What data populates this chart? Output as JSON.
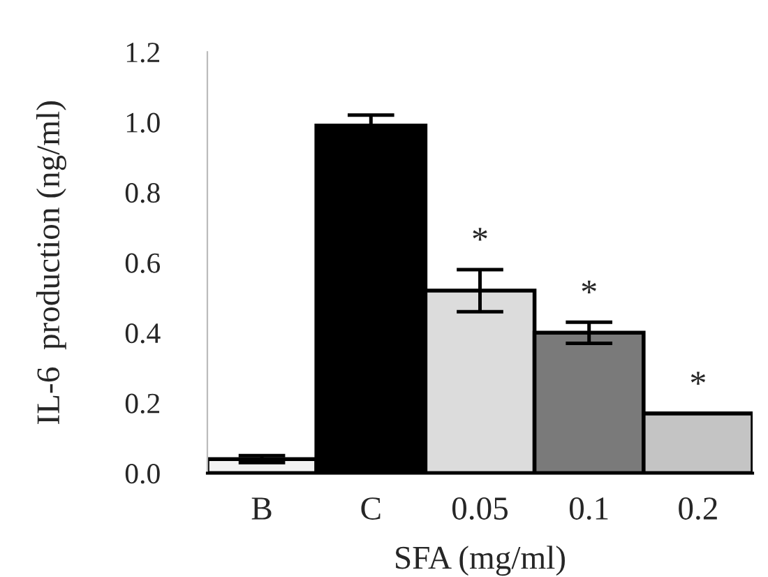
{
  "chart_data": {
    "type": "bar",
    "xlabel": "SFA (mg/ml)",
    "ylabel": "IL-6  production (ng/ml)",
    "categories": [
      "B",
      "C",
      "0.05",
      "0.1",
      "0.2"
    ],
    "values": [
      0.04,
      0.99,
      0.52,
      0.4,
      0.17
    ],
    "errors": [
      0.01,
      0.03,
      0.06,
      0.03,
      null
    ],
    "colors": [
      "#f2f2f2",
      "#000000",
      "#dcdcdc",
      "#7a7a7a",
      "#c4c4c4"
    ],
    "ylim": [
      0,
      1.2
    ],
    "yticks": [
      {
        "value": 0,
        "label": "0.0"
      },
      {
        "value": 0.2,
        "label": "0.2"
      },
      {
        "value": 0.4,
        "label": "0.4"
      },
      {
        "value": 0.6,
        "label": "0.6"
      },
      {
        "value": 0.8,
        "label": "0.8"
      },
      {
        "value": 1.0,
        "label": "1.0"
      },
      {
        "value": 1.2,
        "label": "1.2"
      }
    ],
    "annotations": [
      "*",
      "*",
      "*"
    ],
    "grid": false,
    "legend": false
  }
}
